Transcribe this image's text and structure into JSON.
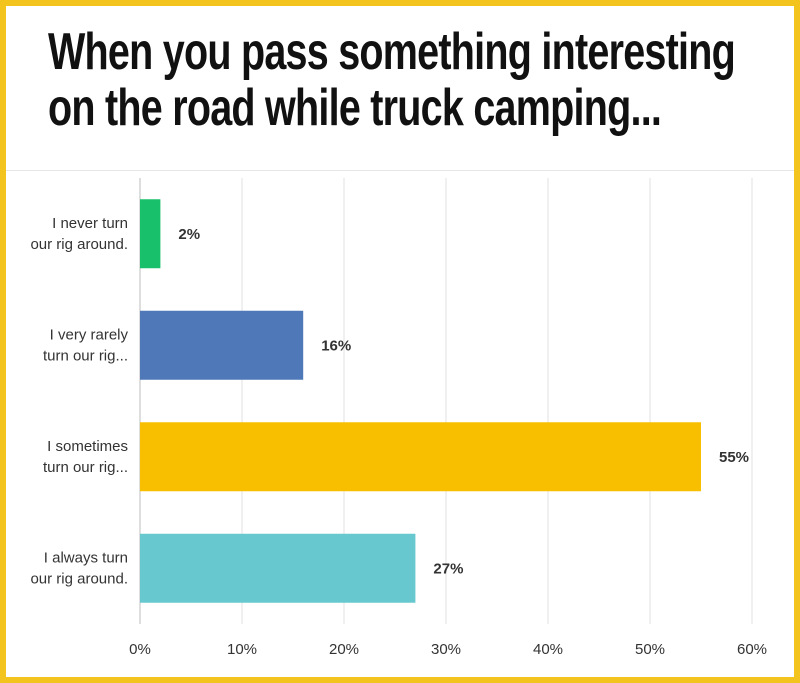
{
  "page": {
    "title_line_1": "When you pass something interesting",
    "title_line_2": "on the road while truck camping..."
  },
  "colors": {
    "frame": "#f3c41d",
    "grid": "#e2e2e2",
    "axis": "#bcbcbc",
    "text": "#333333"
  },
  "chart_data": {
    "type": "bar",
    "orientation": "horizontal",
    "title": "When you pass something interesting on the road while truck camping...",
    "categories": [
      [
        "I never turn",
        "our rig around."
      ],
      [
        "I very rarely",
        "turn our rig..."
      ],
      [
        "I sometimes",
        "turn our rig..."
      ],
      [
        "I always turn",
        "our rig around."
      ]
    ],
    "values": [
      2,
      16,
      55,
      27
    ],
    "value_labels": [
      "2%",
      "16%",
      "55%",
      "27%"
    ],
    "bar_colors": [
      "#19c06b",
      "#4f78b8",
      "#f8bf00",
      "#67c8d0"
    ],
    "x_ticks": [
      "0%",
      "10%",
      "20%",
      "30%",
      "40%",
      "50%",
      "60%"
    ],
    "x_tick_values": [
      0,
      10,
      20,
      30,
      40,
      50,
      60
    ],
    "xlim": [
      0,
      60
    ],
    "grid": true,
    "legend": "none"
  }
}
